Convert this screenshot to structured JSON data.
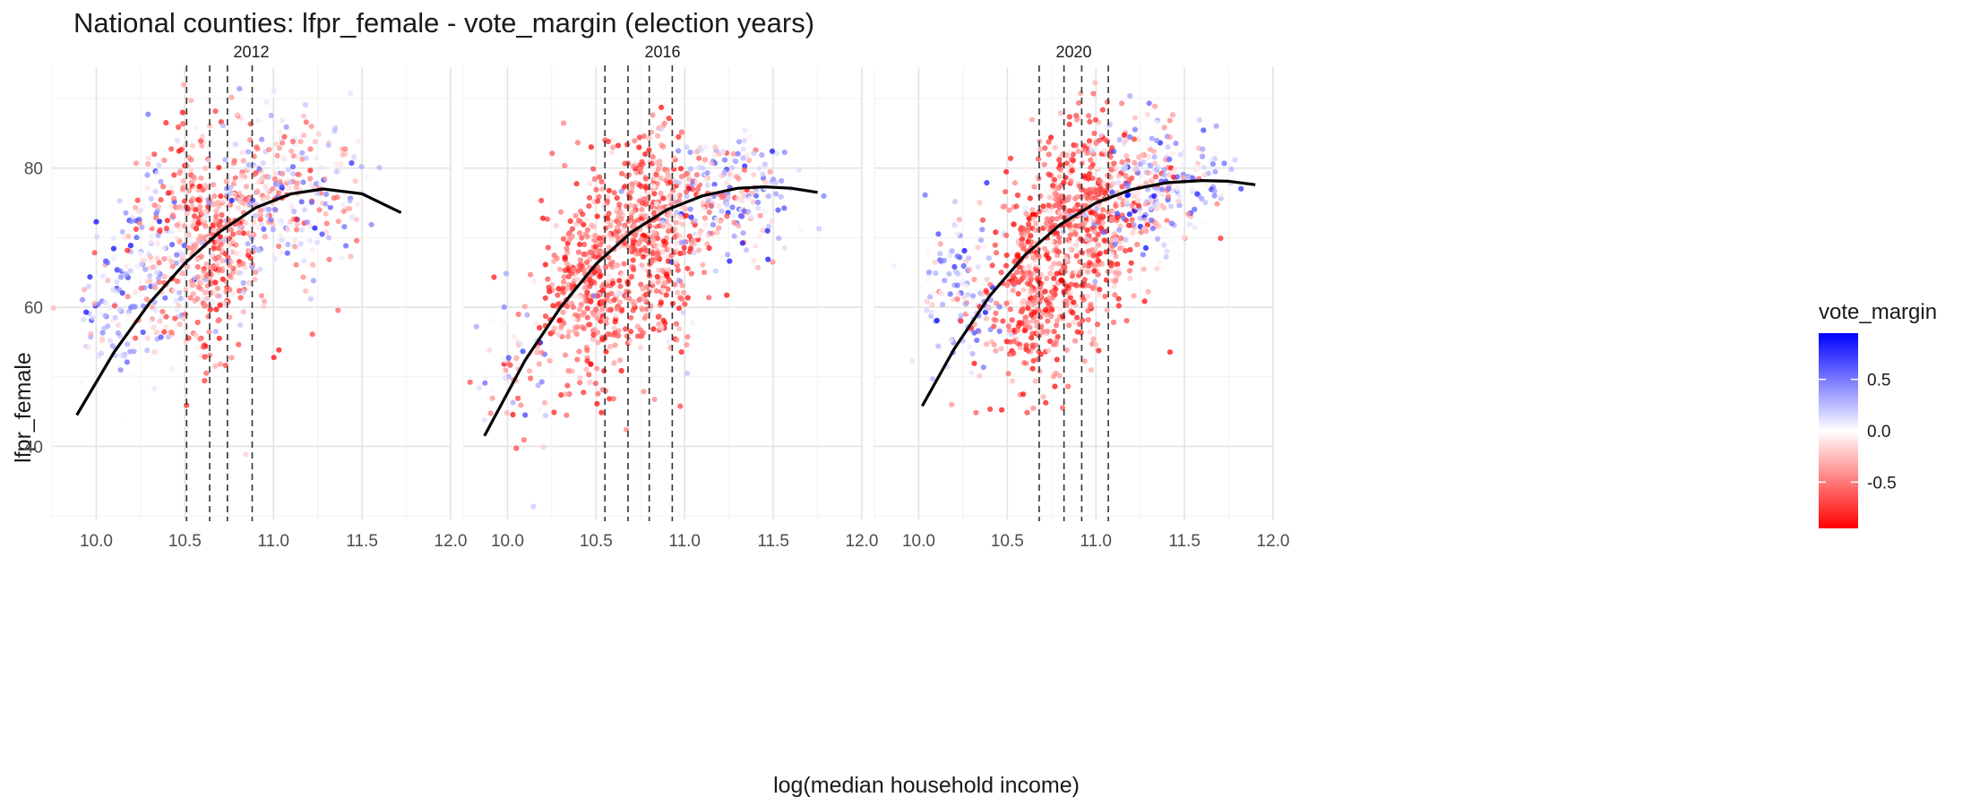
{
  "chart_data": {
    "type": "scatter",
    "title": "National counties: lfpr_female - vote_margin (election years)",
    "xlabel": "log(median household income)",
    "ylabel": "lfpr_female",
    "xlim": [
      9.75,
      12.0
    ],
    "ylim": [
      29.5,
      94.5
    ],
    "x_ticks": [
      10.0,
      10.5,
      11.0,
      11.5,
      12.0
    ],
    "x_tick_labels": [
      "10.0",
      "10.5",
      "11.0",
      "11.5",
      "12.0"
    ],
    "y_ticks": [
      40,
      60,
      80
    ],
    "y_tick_labels": [
      "40",
      "60",
      "80"
    ],
    "grid": true,
    "color_scale": {
      "name": "vote_margin",
      "limits": [
        -0.95,
        0.95
      ],
      "ticks": [
        0.5,
        0.0,
        -0.5
      ],
      "tick_labels": [
        "0.5",
        "0.0",
        "-0.5"
      ],
      "low_color": "#ff0000",
      "mid_color": "#ffffff",
      "high_color": "#0000ff"
    },
    "legend_position": "right",
    "panels": [
      {
        "label": "2012",
        "vlines": [
          10.51,
          10.64,
          10.74,
          10.88
        ],
        "trend": {
          "x": [
            9.89,
            10.1,
            10.3,
            10.5,
            10.7,
            10.9,
            11.1,
            11.28,
            11.5,
            11.72
          ],
          "y": [
            44.5,
            53.5,
            60.6,
            66.3,
            70.9,
            74.3,
            76.3,
            77.0,
            76.3,
            73.6
          ]
        },
        "cloud": [
          {
            "x": 10.05,
            "y": 58,
            "sx": 0.1,
            "sy": 4,
            "n": 70,
            "m": 0.25,
            "sm": 0.3
          },
          {
            "x": 10.32,
            "y": 66,
            "sx": 0.12,
            "sy": 7,
            "n": 180,
            "m": 0.05,
            "sm": 0.4
          },
          {
            "x": 10.65,
            "y": 70,
            "sx": 0.14,
            "sy": 9,
            "n": 420,
            "m": -0.45,
            "sm": 0.3
          },
          {
            "x": 11.0,
            "y": 76,
            "sx": 0.17,
            "sy": 6,
            "n": 260,
            "m": -0.1,
            "sm": 0.4
          },
          {
            "x": 11.35,
            "y": 77,
            "sx": 0.12,
            "sy": 4,
            "n": 60,
            "m": 0.1,
            "sm": 0.35
          }
        ]
      },
      {
        "label": "2016",
        "vlines": [
          10.55,
          10.68,
          10.8,
          10.93
        ],
        "trend": {
          "x": [
            9.87,
            10.1,
            10.3,
            10.5,
            10.7,
            10.9,
            11.1,
            11.3,
            11.45,
            11.6,
            11.75
          ],
          "y": [
            41.5,
            52.4,
            60.0,
            66.2,
            70.8,
            74.0,
            76.0,
            77.1,
            77.3,
            77.1,
            76.5
          ]
        },
        "cloud": [
          {
            "x": 10.05,
            "y": 52,
            "sx": 0.1,
            "sy": 6,
            "n": 70,
            "m": -0.1,
            "sm": 0.45
          },
          {
            "x": 10.45,
            "y": 62,
            "sx": 0.13,
            "sy": 7,
            "n": 330,
            "m": -0.6,
            "sm": 0.25
          },
          {
            "x": 10.8,
            "y": 70,
            "sx": 0.14,
            "sy": 8,
            "n": 480,
            "m": -0.55,
            "sm": 0.3
          },
          {
            "x": 11.15,
            "y": 76,
            "sx": 0.15,
            "sy": 5,
            "n": 220,
            "m": 0.0,
            "sm": 0.45
          },
          {
            "x": 11.45,
            "y": 77,
            "sx": 0.1,
            "sy": 4,
            "n": 50,
            "m": 0.3,
            "sm": 0.35
          }
        ]
      },
      {
        "label": "2020",
        "vlines": [
          10.68,
          10.82,
          10.92,
          11.07
        ],
        "trend": {
          "x": [
            10.02,
            10.2,
            10.4,
            10.6,
            10.8,
            11.0,
            11.2,
            11.4,
            11.6,
            11.75,
            11.9
          ],
          "y": [
            45.8,
            54.0,
            61.6,
            67.5,
            71.9,
            75.0,
            76.9,
            77.9,
            78.2,
            78.1,
            77.6
          ]
        },
        "cloud": [
          {
            "x": 10.25,
            "y": 62,
            "sx": 0.12,
            "sy": 6,
            "n": 140,
            "m": 0.2,
            "sm": 0.4
          },
          {
            "x": 10.65,
            "y": 62,
            "sx": 0.13,
            "sy": 7,
            "n": 360,
            "m": -0.6,
            "sm": 0.25
          },
          {
            "x": 10.95,
            "y": 72,
            "sx": 0.15,
            "sy": 8,
            "n": 500,
            "m": -0.55,
            "sm": 0.3
          },
          {
            "x": 11.3,
            "y": 77,
            "sx": 0.15,
            "sy": 5,
            "n": 220,
            "m": 0.05,
            "sm": 0.45
          },
          {
            "x": 11.6,
            "y": 78,
            "sx": 0.1,
            "sy": 3,
            "n": 50,
            "m": 0.35,
            "sm": 0.3
          }
        ]
      }
    ]
  }
}
